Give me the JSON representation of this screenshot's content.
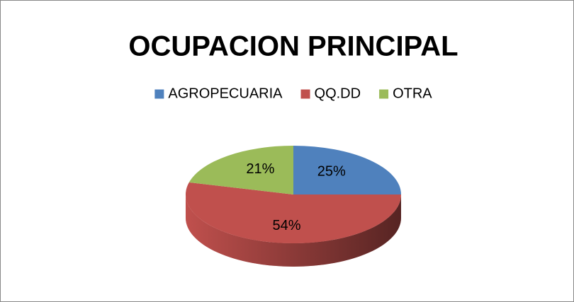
{
  "chart_data": {
    "type": "pie",
    "title": "OCUPACION PRINCIPAL",
    "categories": [
      "AGROPECUARIA",
      "QQ.DD",
      "OTRA"
    ],
    "values": [
      25,
      54,
      21
    ],
    "value_labels": [
      "25%",
      "54%",
      "21%"
    ],
    "colors": [
      "#4f81bd",
      "#c0504d",
      "#9bbb59"
    ],
    "legend": "top"
  }
}
